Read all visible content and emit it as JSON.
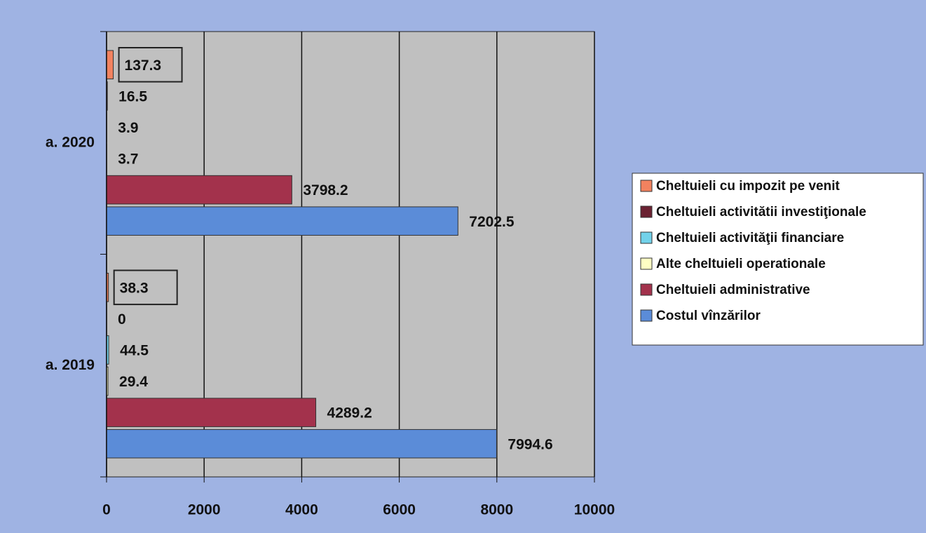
{
  "chart_data": {
    "type": "bar",
    "orientation": "horizontal",
    "categories": [
      "a. 2019",
      "a. 2020"
    ],
    "series": [
      {
        "name": "Cheltuieli cu impozit pe venit",
        "color": "#f2825f",
        "values": [
          38.3,
          137.3
        ]
      },
      {
        "name": "Cheltuieli activitătii investiţionale",
        "color": "#6b2232",
        "values": [
          0,
          16.5
        ]
      },
      {
        "name": "Cheltuieli activităţii financiare",
        "color": "#72d2ea",
        "values": [
          44.5,
          3.9
        ]
      },
      {
        "name": "Alte cheltuieli operationale",
        "color": "#ffffc4",
        "values": [
          29.4,
          3.7
        ]
      },
      {
        "name": "Cheltuieli administrative",
        "color": "#a3324c",
        "values": [
          4289.2,
          3798.2
        ]
      },
      {
        "name": "Costul vînzărilor",
        "color": "#5b8cd8",
        "values": [
          7994.6,
          7202.5
        ]
      }
    ],
    "xlim": [
      0,
      10000
    ],
    "xticks": [
      0,
      2000,
      4000,
      6000,
      8000,
      10000
    ],
    "grid": true,
    "legend": "right"
  }
}
